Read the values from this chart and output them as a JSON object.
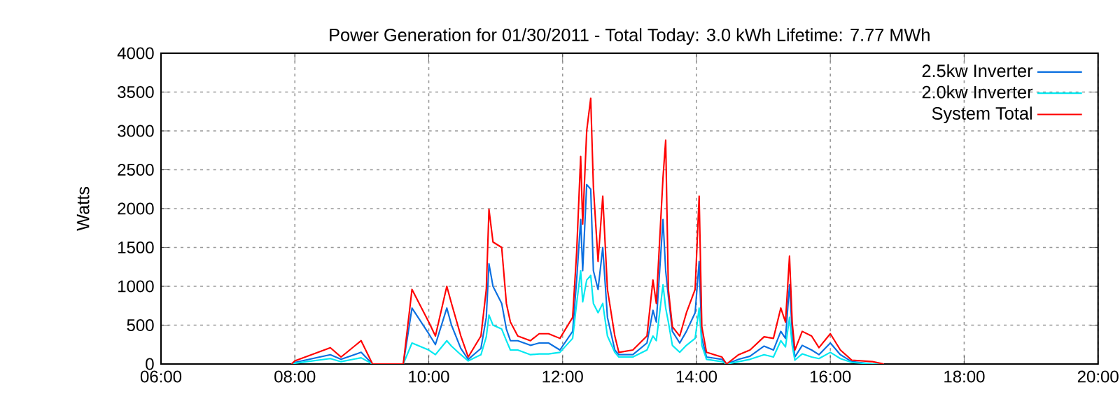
{
  "chart_data": {
    "type": "line",
    "title": "Power Generation for 01/30/2011 - Total Today: 3.0 kWh   Lifetime: 7.77 MWh",
    "ylabel": "Watts",
    "xlim": [
      6,
      20
    ],
    "xticks": [
      {
        "value": 6,
        "label": "06:00"
      },
      {
        "value": 8,
        "label": "08:00"
      },
      {
        "value": 10,
        "label": "10:00"
      },
      {
        "value": 12,
        "label": "12:00"
      },
      {
        "value": 14,
        "label": "14:00"
      },
      {
        "value": 16,
        "label": "16:00"
      },
      {
        "value": 18,
        "label": "18:00"
      },
      {
        "value": 20,
        "label": "20:00"
      }
    ],
    "ylim": [
      0,
      4000
    ],
    "yticks": [
      0,
      500,
      1000,
      1500,
      2000,
      2500,
      3000,
      3500,
      4000
    ],
    "grid": true,
    "legend": "top right",
    "x": [
      7.95,
      8.0,
      8.53,
      8.69,
      8.99,
      9.16,
      9.62,
      9.75,
      10.0,
      10.1,
      10.27,
      10.34,
      10.48,
      10.59,
      10.78,
      10.86,
      10.9,
      10.96,
      11.09,
      11.16,
      11.22,
      11.33,
      11.52,
      11.65,
      11.79,
      11.96,
      12.15,
      12.21,
      12.27,
      12.3,
      12.36,
      12.42,
      12.46,
      12.53,
      12.6,
      12.67,
      12.78,
      12.84,
      13.05,
      13.26,
      13.35,
      13.4,
      13.5,
      13.54,
      13.58,
      13.64,
      13.75,
      13.85,
      13.98,
      14.04,
      14.08,
      14.15,
      14.38,
      14.45,
      14.63,
      14.8,
      15.01,
      15.15,
      15.26,
      15.33,
      15.39,
      15.43,
      15.47,
      15.58,
      15.72,
      15.83,
      16.0,
      16.15,
      16.32,
      16.63,
      16.8
    ],
    "series": [
      {
        "name": "2.5kw Inverter",
        "color": "#0a6fe0",
        "values": [
          0,
          20,
          120,
          60,
          150,
          0,
          0,
          720,
          390,
          250,
          720,
          500,
          200,
          60,
          200,
          600,
          1290,
          1000,
          780,
          450,
          300,
          300,
          240,
          270,
          270,
          180,
          420,
          1080,
          1860,
          1200,
          2310,
          2250,
          1200,
          960,
          1500,
          600,
          180,
          120,
          120,
          270,
          690,
          540,
          1860,
          1200,
          870,
          420,
          270,
          420,
          660,
          1320,
          330,
          90,
          60,
          0,
          60,
          100,
          230,
          180,
          420,
          330,
          1020,
          420,
          90,
          240,
          180,
          120,
          270,
          120,
          30,
          0,
          0
        ]
      },
      {
        "name": "2.0kw Inverter",
        "color": "#00e8f0",
        "values": [
          0,
          10,
          70,
          30,
          80,
          0,
          0,
          270,
          180,
          120,
          300,
          230,
          120,
          40,
          120,
          350,
          630,
          500,
          450,
          300,
          180,
          180,
          120,
          130,
          130,
          150,
          330,
          780,
          1200,
          800,
          1080,
          1140,
          780,
          660,
          780,
          360,
          150,
          90,
          90,
          180,
          360,
          300,
          1020,
          720,
          540,
          240,
          150,
          240,
          330,
          720,
          240,
          60,
          30,
          0,
          30,
          60,
          120,
          90,
          300,
          220,
          600,
          240,
          50,
          130,
          90,
          70,
          150,
          70,
          20,
          0,
          0
        ]
      },
      {
        "name": "System Total",
        "color": "#ff0000",
        "values": [
          0,
          40,
          210,
          90,
          300,
          0,
          0,
          960,
          540,
          360,
          1000,
          780,
          360,
          90,
          360,
          960,
          1990,
          1570,
          1500,
          780,
          540,
          360,
          300,
          390,
          390,
          330,
          600,
          1440,
          2670,
          1800,
          3000,
          3420,
          2280,
          1320,
          2160,
          960,
          360,
          150,
          180,
          360,
          1080,
          780,
          2400,
          2880,
          960,
          480,
          360,
          660,
          960,
          2160,
          480,
          150,
          90,
          0,
          120,
          180,
          350,
          330,
          720,
          540,
          1390,
          540,
          180,
          420,
          360,
          210,
          390,
          180,
          50,
          30,
          0
        ]
      }
    ]
  }
}
